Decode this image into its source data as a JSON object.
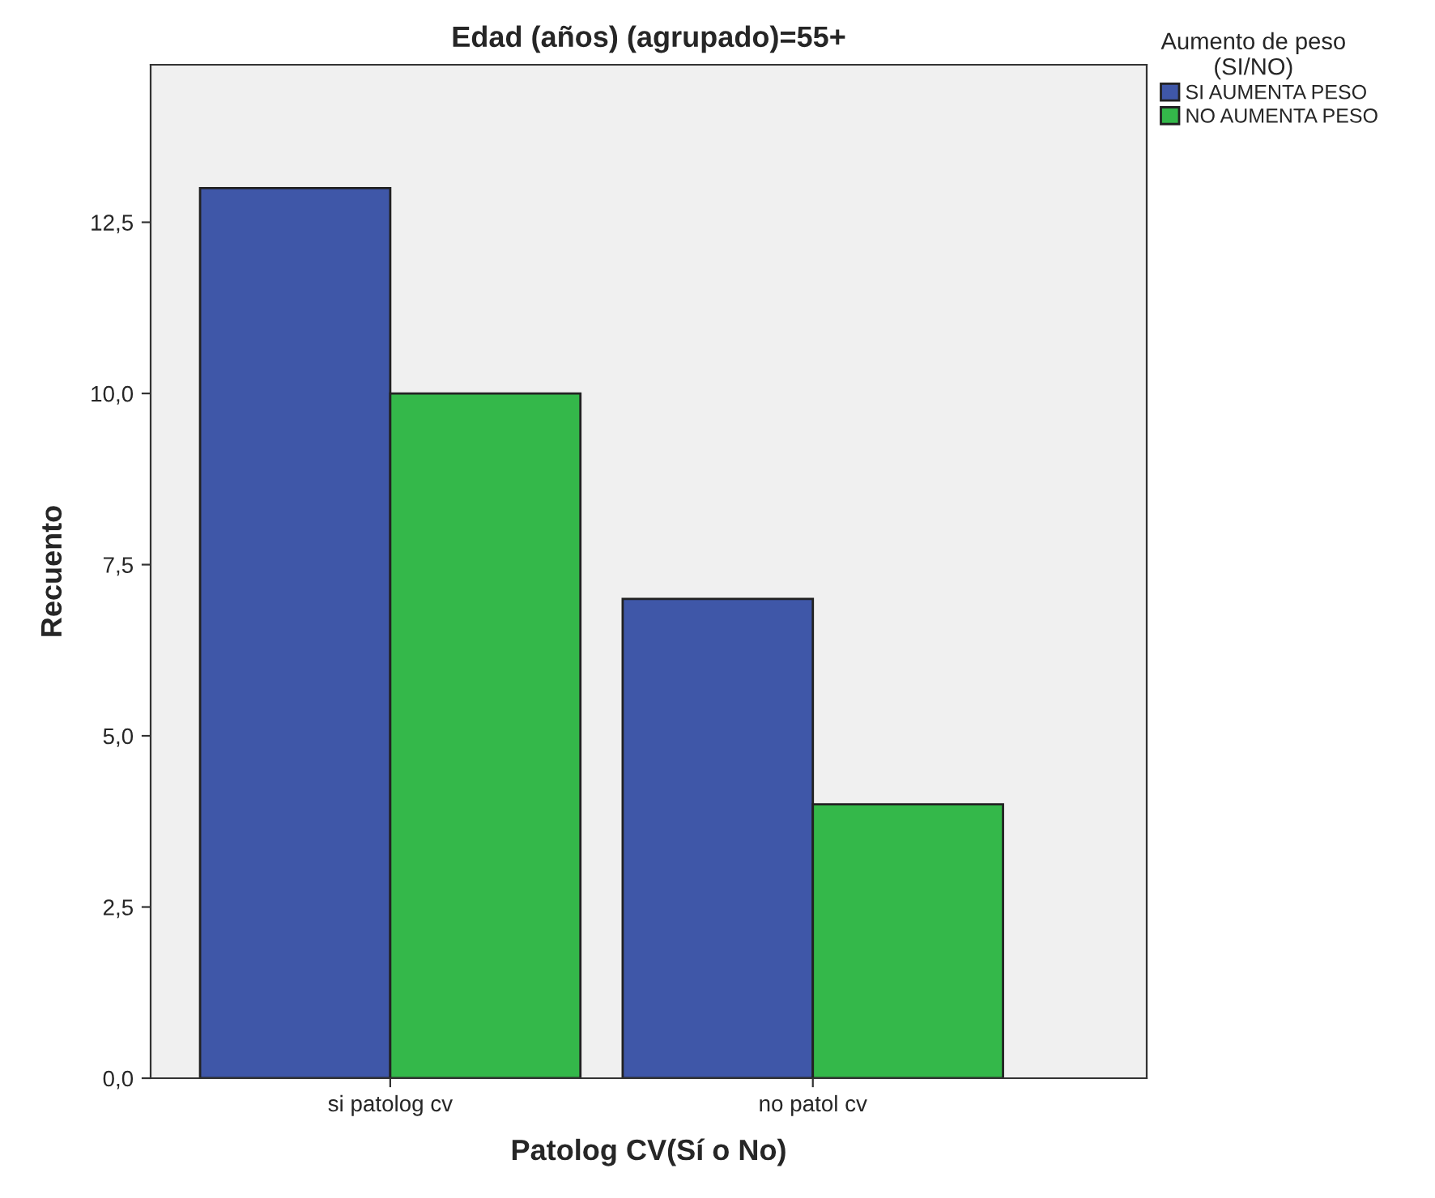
{
  "chart_data": {
    "type": "bar",
    "title": "Edad (años) (agrupado)=55+",
    "xlabel": "Patolog CV(Sí o No)",
    "ylabel": "Recuento",
    "legend_title": "Aumento de peso\n(SI/NO)",
    "categories": [
      "si patolog cv",
      "no patol cv"
    ],
    "series": [
      {
        "name": "SI AUMENTA PESO",
        "color": "#3f57a8",
        "values": [
          13,
          7
        ]
      },
      {
        "name": "NO AUMENTA PESO",
        "color": "#34b84a",
        "values": [
          10,
          4
        ]
      }
    ],
    "ylim": [
      0,
      14.8
    ],
    "yticks": [
      {
        "value": 0,
        "label": "0,0"
      },
      {
        "value": 2.5,
        "label": "2,5"
      },
      {
        "value": 5,
        "label": "5,0"
      },
      {
        "value": 7.5,
        "label": "7,5"
      },
      {
        "value": 10,
        "label": "10,0"
      },
      {
        "value": 12.5,
        "label": "12,5"
      }
    ],
    "legend": "top right",
    "grid": false
  }
}
